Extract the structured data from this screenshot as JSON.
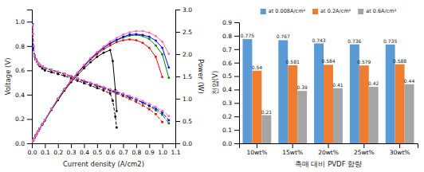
{
  "chart_data": [
    {
      "type": "line",
      "xlabel": "Current density (A/cm2)",
      "ylabel": "Voltage (V)",
      "y2label": "Power (W)",
      "xlim": [
        0,
        1.1
      ],
      "ylim": [
        0.0,
        1.1
      ],
      "y2lim": [
        0.0,
        3.0
      ],
      "xticks": [
        {
          "value": 0.0,
          "label": "0.0"
        },
        0.1,
        0.2,
        0.3,
        0.4,
        0.5,
        0.6,
        0.7,
        0.8,
        0.9,
        {
          "value": 1.0,
          "label": "1.0"
        },
        1.1
      ],
      "yticks": [
        {
          "value": 0.0,
          "label": "0.0"
        },
        0.2,
        0.4,
        0.6,
        0.8,
        {
          "value": 1.0,
          "label": "1.0"
        }
      ],
      "y2ticks": [
        {
          "value": 0.0,
          "label": "0.0"
        },
        0.5,
        {
          "value": 1.0,
          "label": "1.0"
        },
        1.5,
        {
          "value": 2.0,
          "label": "2.0"
        },
        2.5,
        {
          "value": 3.0,
          "label": "3.0"
        }
      ],
      "grid": false,
      "series": [
        {
          "color": "black",
          "marker": "square",
          "line_style": "dashed",
          "x": [
            0.005,
            0.01,
            0.02,
            0.03,
            0.04,
            0.05,
            0.06,
            0.08,
            0.1,
            0.15,
            0.2,
            0.25,
            0.3,
            0.35,
            0.4,
            0.45,
            0.5,
            0.55,
            0.6,
            0.62,
            0.64,
            0.65
          ],
          "values": [
            0.98,
            0.78,
            0.72,
            0.69,
            0.67,
            0.65,
            0.635,
            0.615,
            0.6,
            0.585,
            0.57,
            0.555,
            0.535,
            0.515,
            0.495,
            0.475,
            0.455,
            0.435,
            0.41,
            0.35,
            0.22,
            0.13
          ]
        },
        {
          "color": "black",
          "marker": "circle",
          "line_style": "solid",
          "axis": "y2",
          "x": [
            0.005,
            0.01,
            0.02,
            0.03,
            0.04,
            0.05,
            0.06,
            0.08,
            0.1,
            0.15,
            0.2,
            0.25,
            0.3,
            0.35,
            0.4,
            0.45,
            0.5,
            0.55,
            0.6,
            0.62,
            0.64,
            0.65
          ],
          "values": [
            0.0425,
            0.068,
            0.119,
            0.1785,
            0.2295,
            0.2805,
            0.323,
            0.4165,
            0.51,
            0.748,
            0.969,
            1.1815,
            1.3685,
            1.53,
            1.683,
            1.819,
            1.938,
            2.0315,
            2.091,
            1.8445,
            1.1985,
            0.7225
          ]
        },
        {
          "color": "red",
          "marker": "square",
          "line_style": "dashed",
          "x": [
            0.005,
            0.01,
            0.02,
            0.03,
            0.04,
            0.05,
            0.06,
            0.08,
            0.1,
            0.15,
            0.2,
            0.25,
            0.3,
            0.35,
            0.4,
            0.45,
            0.5,
            0.55,
            0.6,
            0.65,
            0.7,
            0.75,
            0.8,
            0.85,
            0.9,
            0.95,
            1.0
          ],
          "values": [
            0.98,
            0.78,
            0.72,
            0.69,
            0.67,
            0.655,
            0.645,
            0.63,
            0.615,
            0.6,
            0.585,
            0.568,
            0.548,
            0.528,
            0.508,
            0.49,
            0.47,
            0.45,
            0.43,
            0.41,
            0.388,
            0.365,
            0.34,
            0.312,
            0.28,
            0.24,
            0.175
          ]
        },
        {
          "color": "red",
          "marker": "circle",
          "line_style": "solid",
          "axis": "y2",
          "x": [
            0.005,
            0.01,
            0.02,
            0.03,
            0.04,
            0.05,
            0.06,
            0.08,
            0.1,
            0.15,
            0.2,
            0.25,
            0.3,
            0.35,
            0.4,
            0.45,
            0.5,
            0.55,
            0.6,
            0.65,
            0.7,
            0.75,
            0.8,
            0.85,
            0.9,
            0.95,
            1.0
          ],
          "values": [
            0.0425,
            0.068,
            0.119,
            0.1785,
            0.2295,
            0.2805,
            0.3315,
            0.425,
            0.527,
            0.765,
            0.9945,
            1.207,
            1.394,
            1.5725,
            1.7255,
            1.8785,
            1.9975,
            2.108,
            2.193,
            2.2695,
            2.312,
            2.329,
            2.312,
            2.2525,
            2.142,
            1.938,
            1.4875
          ]
        },
        {
          "color": "green",
          "marker": "square",
          "line_style": "dashed",
          "x": [
            0.005,
            0.01,
            0.02,
            0.03,
            0.04,
            0.05,
            0.06,
            0.08,
            0.1,
            0.15,
            0.2,
            0.25,
            0.3,
            0.35,
            0.4,
            0.45,
            0.5,
            0.55,
            0.6,
            0.65,
            0.7,
            0.75,
            0.8,
            0.85,
            0.9,
            0.95,
            1.0,
            1.05
          ],
          "values": [
            0.98,
            0.78,
            0.72,
            0.69,
            0.67,
            0.655,
            0.645,
            0.632,
            0.618,
            0.602,
            0.587,
            0.57,
            0.552,
            0.532,
            0.512,
            0.495,
            0.475,
            0.458,
            0.438,
            0.418,
            0.398,
            0.378,
            0.358,
            0.333,
            0.305,
            0.272,
            0.235,
            0.165
          ]
        },
        {
          "color": "green",
          "marker": "circle",
          "line_style": "solid",
          "axis": "y2",
          "x": [
            0.005,
            0.01,
            0.02,
            0.03,
            0.04,
            0.05,
            0.06,
            0.08,
            0.1,
            0.15,
            0.2,
            0.25,
            0.3,
            0.35,
            0.4,
            0.45,
            0.5,
            0.55,
            0.6,
            0.65,
            0.7,
            0.75,
            0.8,
            0.85,
            0.9,
            0.95,
            1.0,
            1.05
          ],
          "values": [
            0.0425,
            0.068,
            0.119,
            0.1785,
            0.2295,
            0.2805,
            0.3315,
            0.4335,
            0.527,
            0.765,
            0.9945,
            1.2155,
            1.411,
            1.581,
            1.7425,
            1.8955,
            2.023,
            2.142,
            2.2355,
            2.312,
            2.3715,
            2.414,
            2.431,
            2.4055,
            2.3375,
            2.193,
            1.9975,
            1.4705
          ]
        },
        {
          "color": "blue",
          "marker": "square",
          "line_style": "dashed",
          "x": [
            0.005,
            0.01,
            0.02,
            0.03,
            0.04,
            0.05,
            0.06,
            0.08,
            0.1,
            0.15,
            0.2,
            0.25,
            0.3,
            0.35,
            0.4,
            0.45,
            0.5,
            0.55,
            0.6,
            0.65,
            0.7,
            0.75,
            0.8,
            0.85,
            0.9,
            0.95,
            1.0,
            1.05
          ],
          "values": [
            0.98,
            0.78,
            0.72,
            0.69,
            0.67,
            0.655,
            0.645,
            0.633,
            0.62,
            0.604,
            0.588,
            0.571,
            0.552,
            0.532,
            0.512,
            0.495,
            0.477,
            0.458,
            0.44,
            0.42,
            0.402,
            0.382,
            0.36,
            0.337,
            0.312,
            0.285,
            0.252,
            0.19
          ]
        },
        {
          "color": "blue",
          "marker": "circle",
          "line_style": "solid",
          "axis": "y2",
          "x": [
            0.005,
            0.01,
            0.02,
            0.03,
            0.04,
            0.05,
            0.06,
            0.08,
            0.1,
            0.15,
            0.2,
            0.25,
            0.3,
            0.35,
            0.4,
            0.45,
            0.5,
            0.55,
            0.6,
            0.65,
            0.7,
            0.75,
            0.8,
            0.85,
            0.9,
            0.95,
            1.0,
            1.05
          ],
          "values": [
            0.0425,
            0.068,
            0.119,
            0.1785,
            0.2295,
            0.2805,
            0.3315,
            0.4335,
            0.527,
            0.7735,
            1.003,
            1.2155,
            1.411,
            1.581,
            1.7425,
            1.8955,
            2.0315,
            2.142,
            2.244,
            2.3205,
            2.3885,
            2.4395,
            2.448,
            2.431,
            2.3885,
            2.3035,
            2.142,
            1.7
          ]
        },
        {
          "color": "#FF69B4",
          "marker": "square",
          "line_style": "dashed",
          "x": [
            0.005,
            0.01,
            0.015,
            0.02,
            0.03,
            0.04,
            0.05,
            0.06,
            0.08,
            0.1,
            0.15,
            0.2,
            0.25,
            0.3,
            0.35,
            0.4,
            0.45,
            0.5,
            0.55,
            0.6,
            0.65,
            0.7,
            0.75,
            0.8,
            0.85,
            0.9,
            0.95,
            1.0,
            1.05
          ],
          "values": [
            0.975,
            0.9,
            0.8,
            0.72,
            0.69,
            0.67,
            0.655,
            0.645,
            0.633,
            0.62,
            0.605,
            0.59,
            0.572,
            0.554,
            0.535,
            0.517,
            0.5,
            0.482,
            0.463,
            0.446,
            0.428,
            0.41,
            0.39,
            0.37,
            0.348,
            0.324,
            0.298,
            0.268,
            0.225
          ]
        },
        {
          "color": "#FF69B4",
          "marker": "circle",
          "line_style": "solid",
          "axis": "y2",
          "x": [
            0.005,
            0.01,
            0.02,
            0.03,
            0.04,
            0.05,
            0.06,
            0.08,
            0.1,
            0.15,
            0.2,
            0.25,
            0.3,
            0.35,
            0.4,
            0.45,
            0.5,
            0.55,
            0.6,
            0.65,
            0.7,
            0.75,
            0.8,
            0.85,
            0.9,
            0.95,
            1.0,
            1.05
          ],
          "values": [
            0.0425,
            0.0765,
            0.119,
            0.1785,
            0.2295,
            0.2805,
            0.3315,
            0.4335,
            0.527,
            0.7735,
            1.003,
            1.2155,
            1.411,
            1.5895,
            1.7595,
            1.9125,
            2.0485,
            2.1675,
            2.278,
            2.363,
            2.4395,
            2.4905,
            2.516,
            2.516,
            2.482,
            2.4055,
            2.278,
            2.006
          ]
        }
      ]
    },
    {
      "type": "bar",
      "xlabel": "촉매 대비 PVDF 함량",
      "ylabel": "전압(V)",
      "categories": [
        "10wt%",
        "15wt%",
        "20wt%",
        "25wt%",
        "30wt%"
      ],
      "ylim": [
        0,
        0.9
      ],
      "yticks": [
        {
          "value": 0.0,
          "label": "0.0"
        },
        0.1,
        0.2,
        0.3,
        0.4,
        0.5,
        0.6,
        0.7,
        0.8,
        0.9
      ],
      "grid": false,
      "legend": "top",
      "data_labels": true,
      "series": [
        {
          "name": "at 0.008A/cm²",
          "color": "#5B9BD5",
          "values": [
            0.775,
            0.767,
            0.743,
            0.736,
            0.735
          ]
        },
        {
          "name": "at 0.2A/cm²",
          "color": "#ED7D31",
          "values": [
            0.54,
            0.581,
            0.584,
            0.579,
            0.588
          ]
        },
        {
          "name": "at 0.6A/cm²",
          "color": "#A5A5A5",
          "values": [
            0.21,
            0.39,
            0.41,
            0.42,
            0.44
          ]
        }
      ]
    }
  ]
}
